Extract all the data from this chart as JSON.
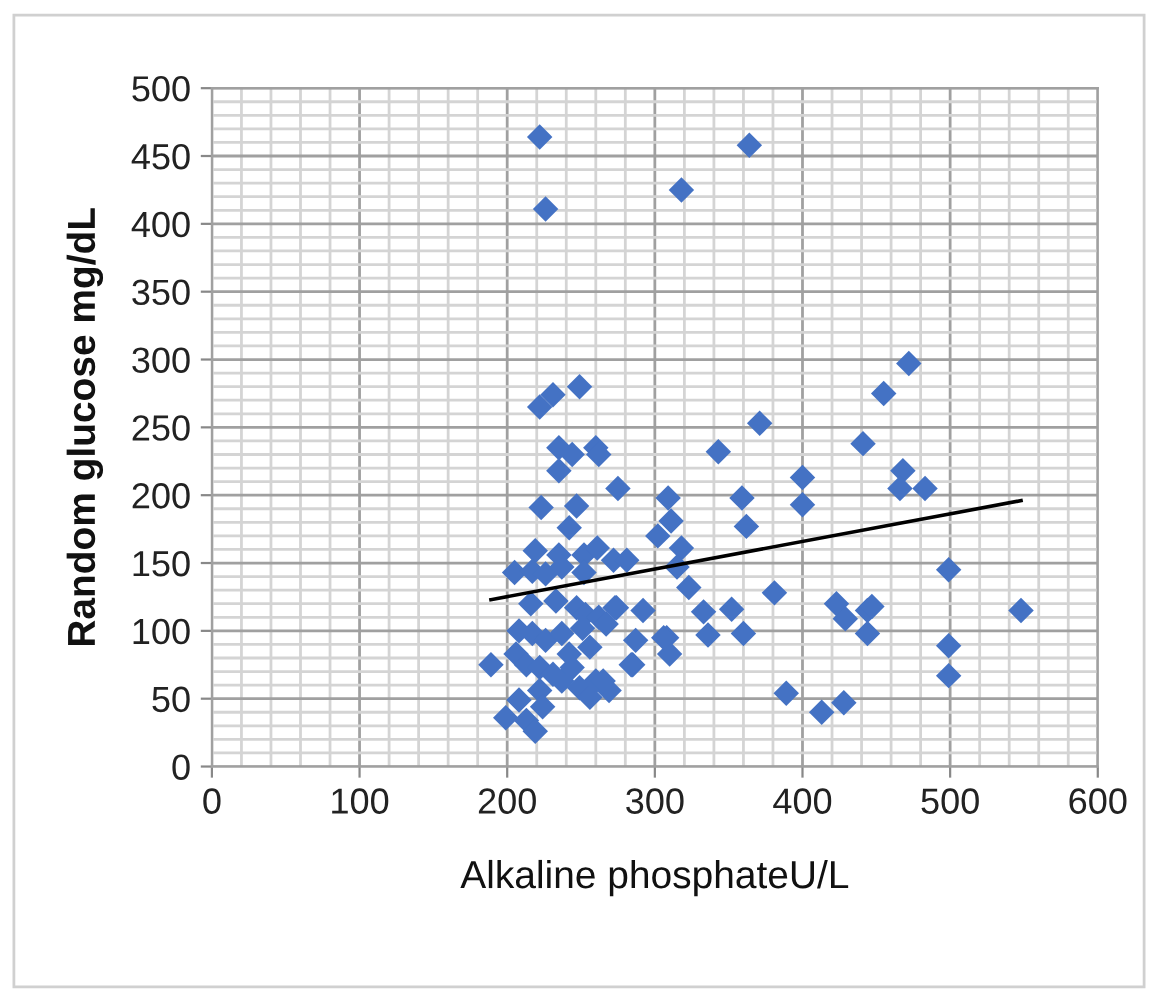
{
  "chart_data": {
    "type": "scatter",
    "xlabel": "Alkaline phosphateU/L",
    "ylabel": "Random glucose mg/dL",
    "xlim": [
      0,
      600
    ],
    "xticks": [
      0,
      100,
      200,
      300,
      400,
      500,
      600
    ],
    "ylim": [
      0,
      500
    ],
    "yticks": [
      0,
      50,
      100,
      150,
      200,
      250,
      300,
      350,
      400,
      450,
      500
    ],
    "grid": true,
    "legend": false,
    "marker": "diamond",
    "series": [
      {
        "color": "#4472c4",
        "x": [
          222,
          226,
          318,
          364,
          249,
          222,
          231,
          235,
          244,
          260,
          262,
          235,
          275,
          223,
          247,
          242,
          309,
          311,
          302,
          318,
          323,
          219,
          235,
          252,
          261,
          272,
          281,
          205,
          217,
          226,
          237,
          252,
          216,
          233,
          247,
          253,
          262,
          274,
          267,
          292,
          208,
          217,
          226,
          237,
          251,
          256,
          242,
          287,
          285,
          308,
          310,
          189,
          206,
          213,
          222,
          237,
          249,
          256,
          269,
          260,
          222,
          224,
          208,
          199,
          213,
          219,
          244,
          231,
          472,
          455,
          371,
          343,
          441,
          400,
          400,
          359,
          362,
          468,
          466,
          483,
          315,
          381,
          499,
          333,
          336,
          352,
          360,
          423,
          429,
          444,
          447,
          444,
          548,
          499,
          499,
          389,
          413,
          428,
          306,
          284,
          265,
          273
        ],
        "values": [
          464,
          411,
          425,
          458,
          280,
          265,
          274,
          235,
          230,
          235,
          230,
          218,
          205,
          191,
          192,
          176,
          198,
          181,
          170,
          161,
          132,
          159,
          156,
          156,
          161,
          152,
          152,
          143,
          144,
          142,
          147,
          143,
          120,
          122,
          117,
          112,
          110,
          117,
          105,
          115,
          100,
          98,
          93,
          98,
          102,
          88,
          83,
          93,
          75,
          95,
          83,
          75,
          83,
          75,
          73,
          63,
          58,
          51,
          56,
          63,
          56,
          44,
          49,
          36,
          34,
          26,
          73,
          68,
          297,
          275,
          253,
          232,
          238,
          213,
          193,
          198,
          177,
          218,
          205,
          205,
          147,
          128,
          145,
          114,
          97,
          116,
          98,
          120,
          109,
          115,
          118,
          98,
          115,
          89,
          67,
          54,
          40,
          47,
          95,
          75,
          63,
          117
        ]
      },
      {
        "type": "line",
        "color": "#000000",
        "marker": "none",
        "line_style": "solid",
        "x": [
          189,
          548
        ],
        "values": [
          123,
          196
        ]
      }
    ]
  }
}
